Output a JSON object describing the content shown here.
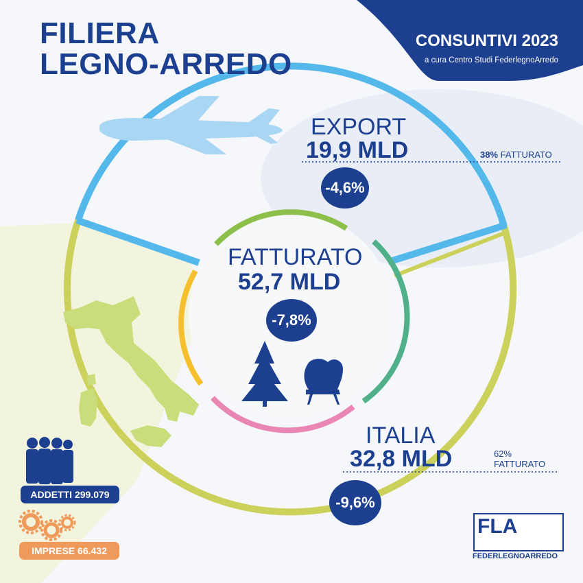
{
  "header": {
    "title_line1": "FILIERA",
    "title_line2": "LEGNO-ARREDO",
    "report_title": "CONSUNTIVI 2023",
    "report_subtitle": "a cura Centro Studi FederlegnoArredo"
  },
  "export": {
    "label": "EXPORT",
    "value": "19,9 MLD",
    "change": "-4,6%",
    "share_pct": "38%",
    "share_word": "FATTURATO"
  },
  "fatturato": {
    "label": "FATTURATO",
    "value": "52,7 MLD",
    "change": "-7,8%"
  },
  "italia": {
    "label": "ITALIA",
    "value": "32,8 MLD",
    "change": "-9,6%",
    "share_pct": "62%",
    "share_word": "FATTURATO"
  },
  "stats": {
    "addetti": "ADDETTI 299.079",
    "imprese": "IMPRESE 66.432"
  },
  "logo": {
    "mark": "FLA",
    "name": "FEDERLEGNOARREDO"
  },
  "colors": {
    "navy": "#1d3f8f",
    "export_blue": "#55b8ea",
    "italia_lime": "#ccd15b",
    "map_green": "#c9de7a",
    "imprese_orange": "#ef9a5a",
    "sky": "#a9d7f3"
  },
  "icons": [
    "airplane-icon",
    "italy-map-icon",
    "people-icon",
    "gears-icon",
    "tree-icon",
    "armchair-icon"
  ]
}
